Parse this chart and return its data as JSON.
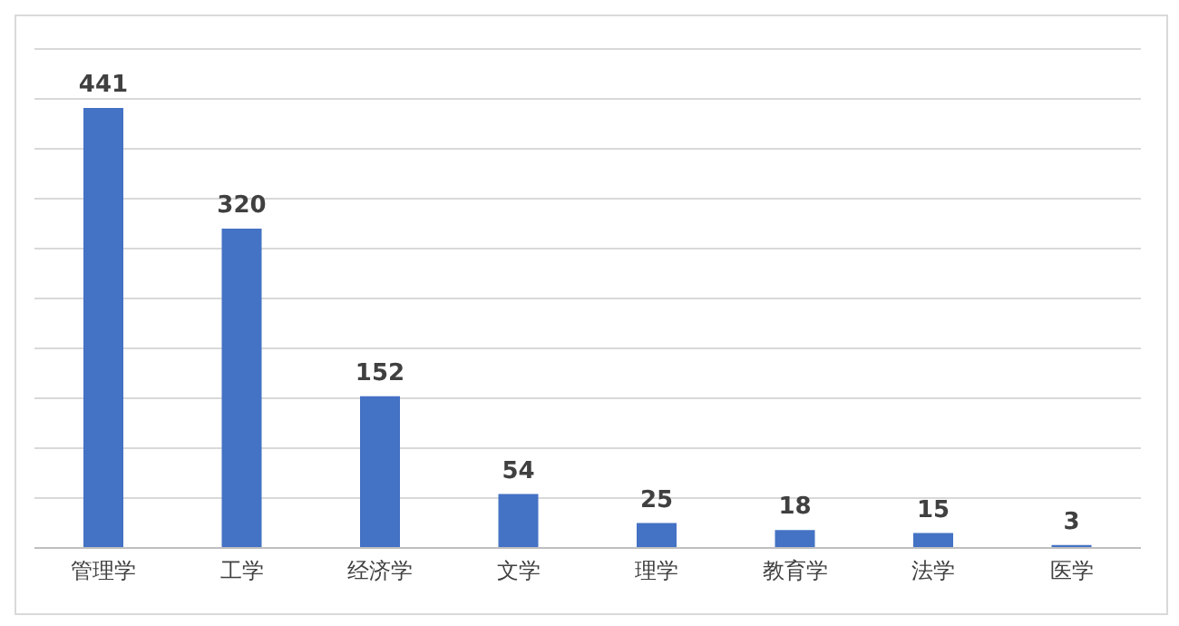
{
  "chart_data": {
    "type": "bar",
    "categories": [
      "管理学",
      "工学",
      "经济学",
      "文学",
      "理学",
      "教育学",
      "法学",
      "医学"
    ],
    "values": [
      441,
      320,
      152,
      54,
      25,
      18,
      15,
      3
    ],
    "color": "#4472c4",
    "data_labels": true,
    "grid": "y",
    "tick_labels": "x",
    "ylim": [
      0,
      500
    ],
    "yticks": [
      0,
      {
        "value": 50,
        "label": null
      },
      {
        "value": 100,
        "label": null
      },
      {
        "value": 150,
        "label": null
      },
      {
        "value": 200,
        "label": null
      },
      {
        "value": 250,
        "label": null
      },
      {
        "value": 300,
        "label": null
      },
      {
        "value": 350,
        "label": null
      },
      {
        "value": 400,
        "label": null
      },
      {
        "value": 450,
        "label": null
      },
      {
        "value": 500,
        "label": null
      }
    ]
  }
}
